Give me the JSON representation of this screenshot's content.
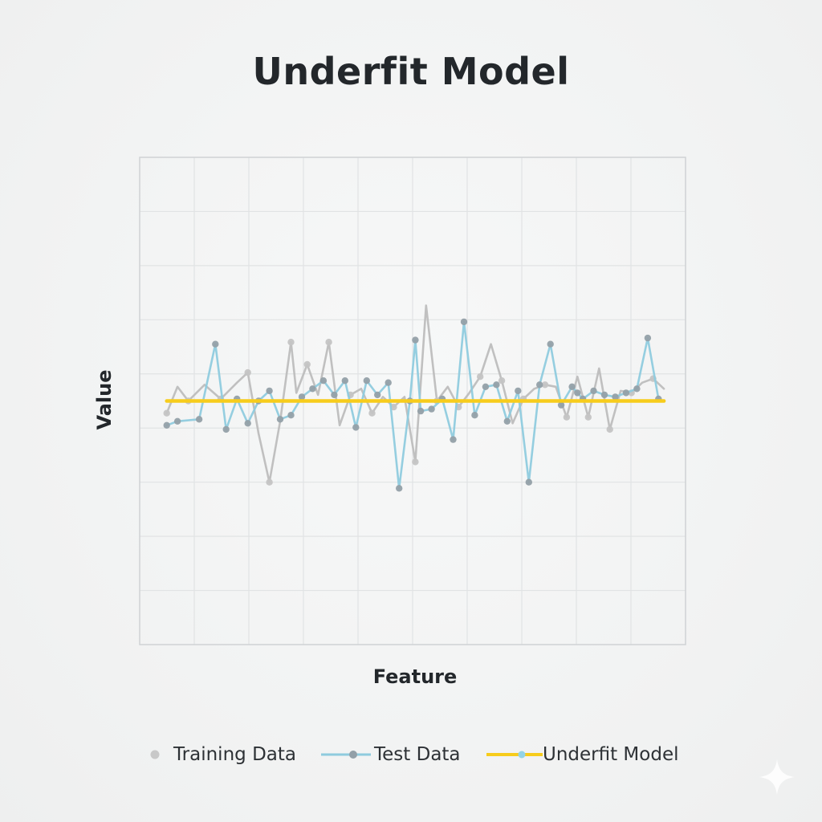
{
  "chart_data": {
    "type": "line",
    "title": "Underfit Model",
    "xlabel": "Feature",
    "ylabel": "Value",
    "xlim": [
      -1,
      100
    ],
    "ylim": [
      -6,
      6
    ],
    "grid": true,
    "legend_position": "bottom",
    "series": [
      {
        "name": "Training Data",
        "style": "line-markers",
        "color": "#bdbdbd",
        "marker_color": "#c4c4c4",
        "x": [
          4,
          6,
          8,
          11,
          14,
          17,
          19,
          21,
          23,
          25,
          27,
          28,
          30,
          32,
          34,
          36,
          38,
          40,
          42,
          44,
          46,
          48,
          50,
          52,
          54,
          56,
          58,
          60,
          62,
          64,
          66,
          68,
          70,
          72,
          74,
          76,
          78,
          80,
          82,
          84,
          86,
          88,
          90,
          92,
          94,
          96
        ],
        "y": [
          -0.3,
          0.35,
          0.0,
          0.4,
          0.05,
          0.45,
          0.7,
          -0.8,
          -2.0,
          -0.5,
          1.45,
          0.2,
          0.9,
          0.15,
          1.45,
          -0.6,
          0.15,
          0.3,
          -0.3,
          0.1,
          -0.15,
          0.1,
          -1.5,
          2.35,
          0.0,
          0.35,
          -0.15,
          0.2,
          0.6,
          1.4,
          0.5,
          -0.55,
          0.05,
          0.3,
          0.4,
          0.35,
          -0.4,
          0.6,
          -0.4,
          0.8,
          -0.7,
          0.25,
          0.2,
          0.45,
          0.55,
          0.3
        ]
      },
      {
        "name": "Test Data",
        "style": "line-markers",
        "color": "#8fcbde",
        "marker_color": "#93a0a8",
        "x": [
          4,
          6,
          10,
          13,
          15,
          17,
          19,
          21,
          23,
          25,
          27,
          29,
          31,
          33,
          35,
          37,
          39,
          41,
          43,
          45,
          47,
          49,
          50,
          51,
          53,
          55,
          57,
          59,
          61,
          63,
          65,
          67,
          69,
          71,
          73,
          75,
          77,
          79,
          80,
          81,
          83,
          85,
          87,
          89,
          91,
          93,
          95
        ],
        "y": [
          -0.6,
          -0.5,
          -0.45,
          1.4,
          -0.7,
          0.05,
          -0.55,
          0.0,
          0.25,
          -0.45,
          -0.35,
          0.1,
          0.3,
          0.5,
          0.15,
          0.5,
          -0.65,
          0.5,
          0.15,
          0.45,
          -2.15,
          0.0,
          1.5,
          -0.25,
          -0.2,
          0.05,
          -0.95,
          1.95,
          -0.35,
          0.35,
          0.4,
          -0.5,
          0.25,
          -2.0,
          0.4,
          1.4,
          -0.1,
          0.35,
          0.2,
          0.05,
          0.25,
          0.15,
          0.1,
          0.2,
          0.3,
          1.55,
          0.05
        ]
      },
      {
        "name": "Underfit Model",
        "style": "line",
        "color": "#f7cc1c",
        "x": [
          4,
          96
        ],
        "y": [
          0.0,
          0.0
        ]
      }
    ]
  },
  "legend": {
    "items": [
      {
        "label": "Training Data",
        "color": "#c8c8c8"
      },
      {
        "label": "Test Data",
        "color": "#8fcbde",
        "marker_color": "#93a0a8"
      },
      {
        "label": "Underfit Model",
        "color": "#f7cc1c",
        "marker_color": "#93d3e6"
      }
    ]
  },
  "colors": {
    "background": "#f3f4f4",
    "grid": "#e1e3e4",
    "axis": "#cfd2d4",
    "text": "#23272b"
  },
  "decoration": {
    "watermark_icon": "sparkle-icon"
  }
}
